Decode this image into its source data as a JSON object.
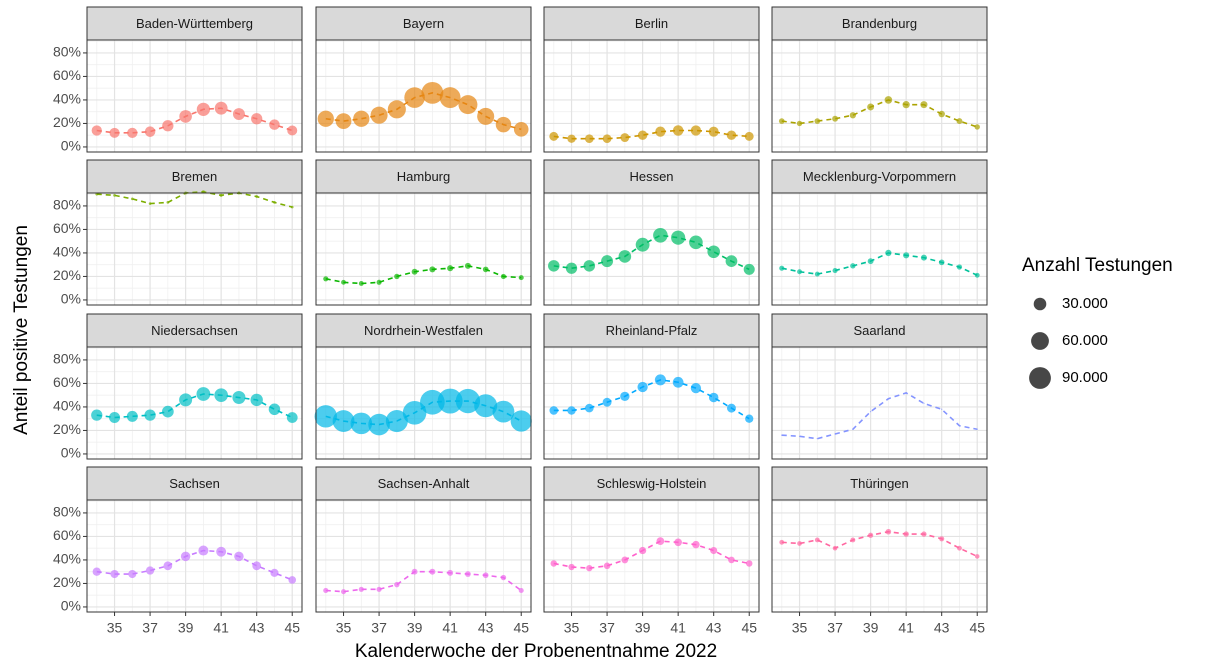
{
  "x_label": "Kalenderwoche der Probenentnahme 2022",
  "y_label": "Anteil positive Testungen",
  "size_legend": {
    "title": "Anzahl Testungen",
    "values": [
      {
        "value": 30000,
        "label": "30.000"
      },
      {
        "value": 60000,
        "label": "60.000"
      },
      {
        "value": 90000,
        "label": "90.000"
      }
    ]
  },
  "chart_data": [
    {
      "type": "bubble",
      "title": "Baden-Württemberg",
      "color": "#F8766D",
      "x": [
        34,
        35,
        36,
        37,
        38,
        39,
        40,
        41,
        42,
        43,
        44,
        45
      ],
      "values": [
        14,
        12,
        12,
        13,
        18,
        26,
        32,
        33,
        28,
        24,
        19,
        14
      ],
      "sizes": [
        20000,
        19000,
        20000,
        21000,
        24000,
        30000,
        33000,
        31000,
        27000,
        24000,
        21000,
        19000
      ],
      "xlim": [
        33.45,
        45.55
      ],
      "xticks": [
        35,
        37,
        39,
        41,
        43,
        45
      ],
      "ylim": [
        -4.3,
        91
      ],
      "yticks": [
        {
          "value": 0,
          "label": "0%"
        },
        {
          "value": 20,
          "label": "20%"
        },
        {
          "value": 40,
          "label": "40%"
        },
        {
          "value": 60,
          "label": "60%"
        },
        {
          "value": 80,
          "label": "80%"
        }
      ]
    },
    {
      "type": "bubble",
      "title": "Bayern",
      "color": "#E68613",
      "x": [
        34,
        35,
        36,
        37,
        38,
        39,
        40,
        41,
        42,
        43,
        44,
        45
      ],
      "values": [
        24,
        22,
        24,
        27,
        32,
        42,
        46,
        42,
        36,
        26,
        19,
        15
      ],
      "sizes": [
        50000,
        47000,
        50000,
        55000,
        62000,
        80000,
        90000,
        82000,
        68000,
        55000,
        45000,
        40000
      ],
      "xlim": [
        33.45,
        45.55
      ],
      "xticks": [
        35,
        37,
        39,
        41,
        43,
        45
      ],
      "ylim": [
        -4.3,
        91
      ],
      "yticks": [
        {
          "value": 0,
          "label": "0%"
        },
        {
          "value": 20,
          "label": "20%"
        },
        {
          "value": 40,
          "label": "40%"
        },
        {
          "value": 60,
          "label": "60%"
        },
        {
          "value": 80,
          "label": "80%"
        }
      ]
    },
    {
      "type": "bubble",
      "title": "Berlin",
      "color": "#CD9600",
      "x": [
        34,
        35,
        36,
        37,
        38,
        39,
        40,
        41,
        42,
        43,
        44,
        45
      ],
      "values": [
        9,
        7,
        7,
        7,
        8,
        10,
        13,
        14,
        14,
        13,
        10,
        9
      ],
      "sizes": [
        15000,
        13000,
        14000,
        14000,
        15000,
        17000,
        20000,
        21000,
        20000,
        19000,
        17000,
        15000
      ],
      "xlim": [
        33.45,
        45.55
      ],
      "xticks": [
        35,
        37,
        39,
        41,
        43,
        45
      ],
      "ylim": [
        -4.3,
        91
      ],
      "yticks": [
        {
          "value": 0,
          "label": "0%"
        },
        {
          "value": 20,
          "label": "20%"
        },
        {
          "value": 40,
          "label": "40%"
        },
        {
          "value": 60,
          "label": "60%"
        },
        {
          "value": 80,
          "label": "80%"
        }
      ]
    },
    {
      "type": "bubble",
      "title": "Brandenburg",
      "color": "#ABA300",
      "x": [
        34,
        35,
        36,
        37,
        38,
        39,
        40,
        41,
        42,
        43,
        44,
        45
      ],
      "values": [
        22,
        20,
        22,
        24,
        27,
        34,
        40,
        36,
        36,
        28,
        22,
        17
      ],
      "sizes": [
        6000,
        5500,
        6000,
        6500,
        7500,
        9000,
        11000,
        10000,
        9500,
        8000,
        6500,
        5500
      ],
      "xlim": [
        33.45,
        45.55
      ],
      "xticks": [
        35,
        37,
        39,
        41,
        43,
        45
      ],
      "ylim": [
        -4.3,
        91
      ],
      "yticks": [
        {
          "value": 0,
          "label": "0%"
        },
        {
          "value": 20,
          "label": "20%"
        },
        {
          "value": 40,
          "label": "40%"
        },
        {
          "value": 60,
          "label": "60%"
        },
        {
          "value": 80,
          "label": "80%"
        }
      ]
    },
    {
      "type": "bubble",
      "title": "Bremen",
      "color": "#7CAE00",
      "x": [
        34,
        35,
        36,
        37,
        38,
        39,
        40,
        41,
        42,
        43,
        44,
        45
      ],
      "values": [
        90,
        89,
        86,
        82,
        83,
        91,
        92,
        89,
        91,
        88,
        83,
        79
      ],
      "sizes": [
        1500,
        1400,
        1400,
        1300,
        1400,
        1600,
        1800,
        1700,
        1600,
        1500,
        1400,
        1300
      ],
      "xlim": [
        33.45,
        45.55
      ],
      "xticks": [
        35,
        37,
        39,
        41,
        43,
        45
      ],
      "ylim": [
        -4.3,
        91
      ],
      "yticks": [
        {
          "value": 0,
          "label": "0%"
        },
        {
          "value": 20,
          "label": "20%"
        },
        {
          "value": 40,
          "label": "40%"
        },
        {
          "value": 60,
          "label": "60%"
        },
        {
          "value": 80,
          "label": "80%"
        }
      ]
    },
    {
      "type": "bubble",
      "title": "Hamburg",
      "color": "#0CB702",
      "x": [
        34,
        35,
        36,
        37,
        38,
        39,
        40,
        41,
        42,
        43,
        44,
        45
      ],
      "values": [
        18,
        15,
        14,
        15,
        20,
        24,
        26,
        27,
        29,
        26,
        20,
        19
      ],
      "sizes": [
        5000,
        4500,
        4500,
        4800,
        5500,
        6500,
        7000,
        7000,
        6800,
        6000,
        5200,
        4800
      ],
      "xlim": [
        33.45,
        45.55
      ],
      "xticks": [
        35,
        37,
        39,
        41,
        43,
        45
      ],
      "ylim": [
        -4.3,
        91
      ],
      "yticks": [
        {
          "value": 0,
          "label": "0%"
        },
        {
          "value": 20,
          "label": "20%"
        },
        {
          "value": 40,
          "label": "40%"
        },
        {
          "value": 60,
          "label": "60%"
        },
        {
          "value": 80,
          "label": "80%"
        }
      ]
    },
    {
      "type": "bubble",
      "title": "Hessen",
      "color": "#00BE67",
      "x": [
        34,
        35,
        36,
        37,
        38,
        39,
        40,
        41,
        42,
        43,
        44,
        45
      ],
      "values": [
        29,
        27,
        29,
        33,
        37,
        47,
        55,
        53,
        49,
        41,
        33,
        26
      ],
      "sizes": [
        25000,
        24000,
        25000,
        27000,
        30000,
        36000,
        40000,
        38000,
        35000,
        30000,
        26000,
        23000
      ],
      "xlim": [
        33.45,
        45.55
      ],
      "xticks": [
        35,
        37,
        39,
        41,
        43,
        45
      ],
      "ylim": [
        -4.3,
        91
      ],
      "yticks": [
        {
          "value": 0,
          "label": "0%"
        },
        {
          "value": 20,
          "label": "20%"
        },
        {
          "value": 40,
          "label": "40%"
        },
        {
          "value": 60,
          "label": "60%"
        },
        {
          "value": 80,
          "label": "80%"
        }
      ]
    },
    {
      "type": "bubble",
      "title": "Mecklenburg-Vorpommern",
      "color": "#00C19A",
      "x": [
        34,
        35,
        36,
        37,
        38,
        39,
        40,
        41,
        42,
        43,
        44,
        45
      ],
      "values": [
        27,
        24,
        22,
        25,
        29,
        33,
        40,
        38,
        36,
        32,
        28,
        21
      ],
      "sizes": [
        5000,
        4600,
        4500,
        4800,
        5500,
        6500,
        7500,
        7200,
        6800,
        6000,
        5200,
        4500
      ],
      "xlim": [
        33.45,
        45.55
      ],
      "xticks": [
        35,
        37,
        39,
        41,
        43,
        45
      ],
      "ylim": [
        -4.3,
        91
      ],
      "yticks": [
        {
          "value": 0,
          "label": "0%"
        },
        {
          "value": 20,
          "label": "20%"
        },
        {
          "value": 40,
          "label": "40%"
        },
        {
          "value": 60,
          "label": "60%"
        },
        {
          "value": 80,
          "label": "80%"
        }
      ]
    },
    {
      "type": "bubble",
      "title": "Niedersachsen",
      "color": "#00BFC4",
      "x": [
        34,
        35,
        36,
        37,
        38,
        39,
        40,
        41,
        42,
        43,
        44,
        45
      ],
      "values": [
        33,
        31,
        32,
        33,
        36,
        46,
        51,
        50,
        48,
        46,
        38,
        31
      ],
      "sizes": [
        24000,
        23000,
        23000,
        24000,
        26000,
        32000,
        36000,
        35000,
        32000,
        29000,
        25000,
        22000
      ],
      "xlim": [
        33.45,
        45.55
      ],
      "xticks": [
        35,
        37,
        39,
        41,
        43,
        45
      ],
      "ylim": [
        -4.3,
        91
      ],
      "yticks": [
        {
          "value": 0,
          "label": "0%"
        },
        {
          "value": 20,
          "label": "20%"
        },
        {
          "value": 40,
          "label": "40%"
        },
        {
          "value": 60,
          "label": "60%"
        },
        {
          "value": 80,
          "label": "80%"
        }
      ]
    },
    {
      "type": "bubble",
      "title": "Nordrhein-Westfalen",
      "color": "#00B8E7",
      "x": [
        34,
        35,
        36,
        37,
        38,
        39,
        40,
        41,
        42,
        43,
        44,
        45
      ],
      "values": [
        32,
        28,
        26,
        25,
        28,
        35,
        44,
        45,
        45,
        41,
        36,
        28
      ],
      "sizes": [
        95000,
        90000,
        88000,
        88000,
        92000,
        105000,
        115000,
        118000,
        112000,
        100000,
        90000,
        85000
      ],
      "xlim": [
        33.45,
        45.55
      ],
      "xticks": [
        35,
        37,
        39,
        41,
        43,
        45
      ],
      "ylim": [
        -4.3,
        91
      ],
      "yticks": [
        {
          "value": 0,
          "label": "0%"
        },
        {
          "value": 20,
          "label": "20%"
        },
        {
          "value": 40,
          "label": "40%"
        },
        {
          "value": 60,
          "label": "60%"
        },
        {
          "value": 80,
          "label": "80%"
        }
      ]
    },
    {
      "type": "bubble",
      "title": "Rheinland-Pfalz",
      "color": "#00A9FF",
      "x": [
        34,
        35,
        36,
        37,
        38,
        39,
        40,
        41,
        42,
        43,
        44,
        45
      ],
      "values": [
        37,
        37,
        39,
        44,
        49,
        57,
        63,
        61,
        56,
        48,
        39,
        30
      ],
      "sizes": [
        14000,
        13500,
        14000,
        15000,
        16500,
        20000,
        23000,
        22000,
        20000,
        17000,
        15000,
        13000
      ],
      "xlim": [
        33.45,
        45.55
      ],
      "xticks": [
        35,
        37,
        39,
        41,
        43,
        45
      ],
      "ylim": [
        -4.3,
        91
      ],
      "yticks": [
        {
          "value": 0,
          "label": "0%"
        },
        {
          "value": 20,
          "label": "20%"
        },
        {
          "value": 40,
          "label": "40%"
        },
        {
          "value": 60,
          "label": "60%"
        },
        {
          "value": 80,
          "label": "80%"
        }
      ]
    },
    {
      "type": "bubble",
      "title": "Saarland",
      "color": "#8494FF",
      "x": [
        34,
        35,
        36,
        37,
        38,
        39,
        40,
        41,
        42,
        43,
        44,
        45
      ],
      "values": [
        16,
        15,
        13,
        17,
        21,
        36,
        47,
        52,
        43,
        38,
        24,
        21
      ],
      "sizes": [
        300,
        300,
        300,
        300,
        300,
        350,
        400,
        400,
        350,
        300,
        300,
        300
      ],
      "xlim": [
        33.45,
        45.55
      ],
      "xticks": [
        35,
        37,
        39,
        41,
        43,
        45
      ],
      "ylim": [
        -4.3,
        91
      ],
      "yticks": [
        {
          "value": 0,
          "label": "0%"
        },
        {
          "value": 20,
          "label": "20%"
        },
        {
          "value": 40,
          "label": "40%"
        },
        {
          "value": 60,
          "label": "60%"
        },
        {
          "value": 80,
          "label": "80%"
        }
      ]
    },
    {
      "type": "bubble",
      "title": "Sachsen",
      "color": "#C77CFF",
      "x": [
        34,
        35,
        36,
        37,
        38,
        39,
        40,
        41,
        42,
        43,
        44,
        45
      ],
      "values": [
        30,
        28,
        28,
        31,
        35,
        43,
        48,
        47,
        43,
        35,
        29,
        23
      ],
      "sizes": [
        13000,
        12500,
        12500,
        13000,
        14500,
        17000,
        19000,
        18500,
        17000,
        14500,
        12500,
        11000
      ],
      "xlim": [
        33.45,
        45.55
      ],
      "xticks": [
        35,
        37,
        39,
        41,
        43,
        45
      ],
      "ylim": [
        -4.3,
        91
      ],
      "yticks": [
        {
          "value": 0,
          "label": "0%"
        },
        {
          "value": 20,
          "label": "20%"
        },
        {
          "value": 40,
          "label": "40%"
        },
        {
          "value": 60,
          "label": "60%"
        },
        {
          "value": 80,
          "label": "80%"
        }
      ]
    },
    {
      "type": "bubble",
      "title": "Sachsen-Anhalt",
      "color": "#ED68ED",
      "x": [
        34,
        35,
        36,
        37,
        38,
        39,
        40,
        41,
        42,
        43,
        44,
        45
      ],
      "values": [
        14,
        13,
        15,
        15,
        19,
        30,
        30,
        29,
        28,
        27,
        25,
        14
      ],
      "sizes": [
        5000,
        4800,
        5000,
        5000,
        5500,
        6500,
        6800,
        6600,
        6300,
        6000,
        5500,
        4800
      ],
      "xlim": [
        33.45,
        45.55
      ],
      "xticks": [
        35,
        37,
        39,
        41,
        43,
        45
      ],
      "ylim": [
        -4.3,
        91
      ],
      "yticks": [
        {
          "value": 0,
          "label": "0%"
        },
        {
          "value": 20,
          "label": "20%"
        },
        {
          "value": 40,
          "label": "40%"
        },
        {
          "value": 60,
          "label": "60%"
        },
        {
          "value": 80,
          "label": "80%"
        }
      ]
    },
    {
      "type": "bubble",
      "title": "Schleswig-Holstein",
      "color": "#FF61CC",
      "x": [
        34,
        35,
        36,
        37,
        38,
        39,
        40,
        41,
        42,
        43,
        44,
        45
      ],
      "values": [
        37,
        34,
        33,
        35,
        40,
        48,
        56,
        55,
        53,
        48,
        40,
        37
      ],
      "sizes": [
        8000,
        7500,
        7500,
        8000,
        8800,
        10000,
        11500,
        11000,
        10500,
        9500,
        8500,
        8000
      ],
      "xlim": [
        33.45,
        45.55
      ],
      "xticks": [
        35,
        37,
        39,
        41,
        43,
        45
      ],
      "ylim": [
        -4.3,
        91
      ],
      "yticks": [
        {
          "value": 0,
          "label": "0%"
        },
        {
          "value": 20,
          "label": "20%"
        },
        {
          "value": 40,
          "label": "40%"
        },
        {
          "value": 60,
          "label": "60%"
        },
        {
          "value": 80,
          "label": "80%"
        }
      ]
    },
    {
      "type": "bubble",
      "title": "Thüringen",
      "color": "#FF68A1",
      "x": [
        34,
        35,
        36,
        37,
        38,
        39,
        40,
        41,
        42,
        43,
        44,
        45
      ],
      "values": [
        55,
        54,
        57,
        50,
        57,
        61,
        64,
        62,
        62,
        58,
        50,
        43
      ],
      "sizes": [
        4500,
        4300,
        4500,
        4200,
        4600,
        5200,
        5800,
        5600,
        5400,
        5000,
        4500,
        4000
      ],
      "xlim": [
        33.45,
        45.55
      ],
      "xticks": [
        35,
        37,
        39,
        41,
        43,
        45
      ],
      "ylim": [
        -4.3,
        91
      ],
      "yticks": [
        {
          "value": 0,
          "label": "0%"
        },
        {
          "value": 20,
          "label": "20%"
        },
        {
          "value": 40,
          "label": "40%"
        },
        {
          "value": 60,
          "label": "60%"
        },
        {
          "value": 80,
          "label": "80%"
        }
      ]
    }
  ]
}
